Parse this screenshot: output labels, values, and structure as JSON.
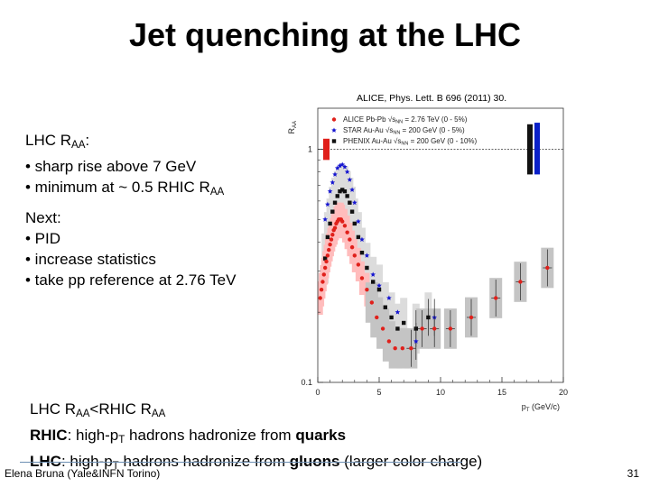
{
  "slide": {
    "title": "Jet quenching at the LHC",
    "citation": "ALICE, Phys. Lett. B 696 (2011) 30.",
    "footer_author": "Elena Bruna (Yale&INFN Torino)",
    "page_number": "31"
  },
  "text": {
    "lhc_raa_head": "LHC R",
    "lhc_raa_sub": "AA",
    "lhc_raa_colon": ":",
    "bullet_sharp_rise": "• sharp rise above 7 GeV",
    "bullet_minimum_pre": "• minimum at ~ 0.5 RHIC R",
    "bullet_minimum_sub": "AA",
    "next_head": "Next:",
    "bullet_pid": "• PID",
    "bullet_statistics": "• increase statistics",
    "bullet_pp_ref": "• take pp reference at 2.76 TeV",
    "comparison_a": "LHC R",
    "comparison_a_sub": "AA",
    "comparison_b": "<RHIC R",
    "comparison_b_sub": "AA",
    "rhic_label": "RHIC",
    "rhic_mid_a": ": high-p",
    "rhic_mid_sub": "T",
    "rhic_mid_b": " hadrons hadronize from ",
    "rhic_quarks": "quarks",
    "lhc_label": "LHC",
    "lhc_mid_a": ": high-p",
    "lhc_mid_sub": "T",
    "lhc_mid_b": " hadrons hadronize from ",
    "lhc_gluons": "gluons",
    "lhc_tail": " (larger color charge)"
  },
  "colors": {
    "alice": "#e0201b",
    "star": "#1515d0",
    "phenix": "#111111",
    "band_light": "#dcdcdc",
    "band_dark": "#c4c4c4",
    "alice_band": "#ffbcbc",
    "norm_star": "#0a20c8"
  },
  "chart_data": {
    "type": "scatter",
    "title": "",
    "xlabel": "p",
    "xlabel_sub": "T",
    "xlabel_unit": "(GeV/c)",
    "ylabel": "R",
    "ylabel_sub": "AA",
    "xlim": [
      0,
      20
    ],
    "ylim": [
      0.1,
      1.5
    ],
    "yscale": "log",
    "x_ticks": [
      0,
      5,
      10,
      15,
      20
    ],
    "x_tick_labels": [
      "0",
      "5",
      "10",
      "15",
      "20"
    ],
    "y_ticks": [
      0.1,
      1
    ],
    "y_tick_labels": [
      "0.1",
      "1"
    ],
    "reference_line": 1,
    "legend": [
      {
        "name": "ALICE Pb-Pb √s_NN = 2.76 TeV (0 - 5%)",
        "label_main": "ALICE Pb-Pb ",
        "label_energy": "√s",
        "label_energy_sub": "NN",
        "label_rest": " = 2.76 TeV (0 - 5%)",
        "marker": "circle",
        "color_key": "alice"
      },
      {
        "name": "STAR Au-Au √s_NN = 200 GeV (0 - 5%)",
        "label_main": "STAR Au-Au ",
        "label_energy": "√s",
        "label_energy_sub": "NN",
        "label_rest": " = 200 GeV (0 - 5%)",
        "marker": "star",
        "color_key": "star"
      },
      {
        "name": "PHENIX Au-Au √s_NN = 200 GeV (0 - 10%)",
        "label_main": "PHENIX Au-Au ",
        "label_energy": "√s",
        "label_energy_sub": "NN",
        "label_rest": " = 200 GeV (0 - 10%)",
        "marker": "square",
        "color_key": "phenix"
      }
    ],
    "series": [
      {
        "name": "ALICE Pb-Pb 2.76 TeV (0-5%)",
        "marker": "circle",
        "color_key": "alice",
        "x": [
          0.2,
          0.3,
          0.4,
          0.5,
          0.6,
          0.7,
          0.8,
          0.9,
          1.0,
          1.1,
          1.2,
          1.3,
          1.4,
          1.5,
          1.6,
          1.7,
          1.8,
          1.9,
          2.0,
          2.2,
          2.4,
          2.6,
          2.8,
          3.0,
          3.3,
          3.6,
          4.0,
          4.4,
          4.8,
          5.3,
          5.8,
          6.3,
          6.9,
          7.6,
          8.5,
          9.5,
          10.8,
          12.5,
          14.5,
          16.5,
          18.7
        ],
        "y": [
          0.23,
          0.25,
          0.27,
          0.29,
          0.31,
          0.33,
          0.35,
          0.37,
          0.39,
          0.41,
          0.43,
          0.45,
          0.46,
          0.48,
          0.49,
          0.5,
          0.5,
          0.5,
          0.49,
          0.47,
          0.44,
          0.41,
          0.38,
          0.35,
          0.32,
          0.28,
          0.25,
          0.22,
          0.19,
          0.17,
          0.15,
          0.14,
          0.14,
          0.14,
          0.17,
          0.17,
          0.17,
          0.19,
          0.23,
          0.27,
          0.31
        ],
        "systematic_band": true
      },
      {
        "name": "STAR Au-Au 200 GeV (0-5%)",
        "marker": "star",
        "color_key": "star",
        "x": [
          0.6,
          0.8,
          1.0,
          1.2,
          1.4,
          1.6,
          1.8,
          2.0,
          2.2,
          2.4,
          2.6,
          2.8,
          3.0,
          3.3,
          3.6,
          4.0,
          4.5,
          5.0,
          5.8,
          6.5,
          8.0,
          9.5
        ],
        "y": [
          0.5,
          0.58,
          0.66,
          0.72,
          0.78,
          0.83,
          0.85,
          0.86,
          0.84,
          0.8,
          0.74,
          0.67,
          0.59,
          0.49,
          0.41,
          0.35,
          0.29,
          0.26,
          0.23,
          0.2,
          0.15,
          0.19
        ]
      },
      {
        "name": "PHENIX Au-Au 200 GeV (0-10%)",
        "marker": "square",
        "color_key": "phenix",
        "x": [
          0.6,
          0.8,
          1.0,
          1.2,
          1.4,
          1.6,
          1.8,
          2.0,
          2.2,
          2.4,
          2.6,
          2.8,
          3.0,
          3.3,
          3.6,
          4.0,
          4.5,
          5.0,
          5.5,
          6.0,
          6.5,
          7.0,
          8.0,
          9.0
        ],
        "y": [
          0.34,
          0.42,
          0.48,
          0.54,
          0.59,
          0.63,
          0.66,
          0.67,
          0.66,
          0.63,
          0.59,
          0.54,
          0.48,
          0.42,
          0.36,
          0.31,
          0.27,
          0.25,
          0.21,
          0.19,
          0.17,
          0.18,
          0.17,
          0.19
        ]
      }
    ]
  }
}
